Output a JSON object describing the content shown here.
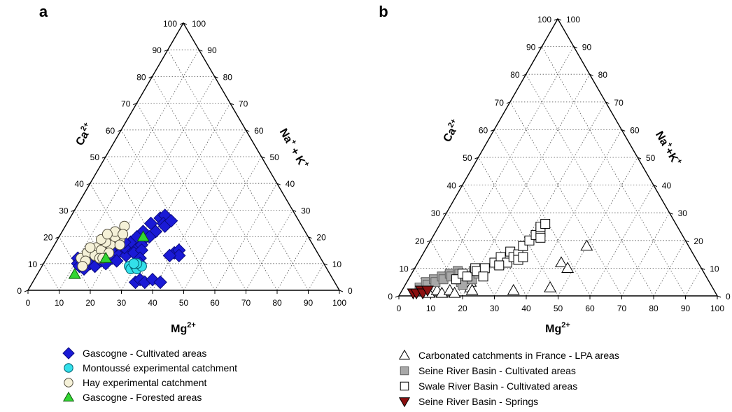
{
  "chart_data": [
    {
      "type": "scatter",
      "subtype": "ternary",
      "panel_label": "a",
      "axes": {
        "bottom": {
          "label": "Mg",
          "sup": "2+",
          "ticks": [
            "0",
            "10",
            "20",
            "30",
            "40",
            "50",
            "60",
            "70",
            "80",
            "90",
            "100"
          ]
        },
        "left": {
          "label": "Ca",
          "sup": "2+",
          "ticks": [
            "0",
            "10",
            "20",
            "30",
            "40",
            "50",
            "60",
            "70",
            "80",
            "90",
            "100"
          ]
        },
        "right": {
          "label": "Na",
          "sup1": "+",
          "mid": " + K",
          "sup2": "+",
          "ticks": [
            "0",
            "10",
            "20",
            "30",
            "40",
            "50",
            "60",
            "70",
            "80",
            "90",
            "100"
          ]
        }
      },
      "grid": true,
      "legend_position": "bottom",
      "series": [
        {
          "name": "Gascogne - Cultivated areas",
          "marker": "diamond",
          "fill": "#1a1ad6",
          "stroke": "#0a0a80",
          "points": [
            [
              10,
              12
            ],
            [
              11,
              10
            ],
            [
              12,
              9
            ],
            [
              13,
              11
            ],
            [
              14,
              8
            ],
            [
              15,
              10
            ],
            [
              16,
              12
            ],
            [
              17,
              9
            ],
            [
              18,
              11
            ],
            [
              19,
              13
            ],
            [
              20,
              10
            ],
            [
              21,
              12
            ],
            [
              22,
              14
            ],
            [
              23,
              11
            ],
            [
              24,
              15
            ],
            [
              25,
              13
            ],
            [
              26,
              16
            ],
            [
              27,
              14
            ],
            [
              27,
              18
            ],
            [
              28,
              20
            ],
            [
              26,
              22
            ],
            [
              27,
              25
            ],
            [
              29,
              27
            ],
            [
              30,
              28
            ],
            [
              31,
              25
            ],
            [
              30,
              22
            ],
            [
              32,
              24
            ],
            [
              33,
              26
            ],
            [
              29,
              20
            ],
            [
              28,
              17
            ],
            [
              29,
              15
            ],
            [
              30,
              12
            ],
            [
              31,
              10
            ],
            [
              33,
              3
            ],
            [
              34,
              4
            ],
            [
              36,
              3
            ],
            [
              38,
              4
            ],
            [
              41,
              3
            ],
            [
              40,
              14
            ],
            [
              41,
              15
            ],
            [
              42,
              13
            ],
            [
              39,
              13
            ],
            [
              24,
              18
            ],
            [
              25,
              20
            ],
            [
              23,
              16
            ],
            [
              22,
              18
            ],
            [
              20,
              17
            ],
            [
              19,
              15
            ]
          ]
        },
        {
          "name": "Montoussé experimental catchment",
          "marker": "circle",
          "fill": "#33e0ea",
          "stroke": "#006070",
          "points": [
            [
              28,
              9
            ],
            [
              29,
              8
            ],
            [
              30,
              9
            ],
            [
              31,
              8
            ],
            [
              32,
              9
            ],
            [
              30,
              10
            ],
            [
              29,
              10
            ]
          ]
        },
        {
          "name": "Hay experimental catchment",
          "marker": "circle",
          "fill": "#f5f1d8",
          "stroke": "#555040",
          "points": [
            [
              11,
              12
            ],
            [
              12,
              14
            ],
            [
              13,
              11
            ],
            [
              14,
              16
            ],
            [
              15,
              13
            ],
            [
              16,
              15
            ],
            [
              17,
              12
            ],
            [
              18,
              17
            ],
            [
              19,
              14
            ],
            [
              20,
              19
            ],
            [
              18,
              20
            ],
            [
              16,
              18
            ],
            [
              14,
              19
            ],
            [
              12,
              16
            ],
            [
              17,
              22
            ],
            [
              19,
              24
            ],
            [
              20,
              21
            ],
            [
              21,
              17
            ],
            [
              15,
              21
            ],
            [
              18,
              12
            ],
            [
              13,
              9
            ]
          ]
        },
        {
          "name": "Gascogne - Forested areas",
          "marker": "triangle-up",
          "fill": "#33d633",
          "stroke": "#0a5a0a",
          "points": [
            [
              12,
              6
            ],
            [
              19,
              12
            ],
            [
              27,
              20
            ]
          ]
        }
      ]
    },
    {
      "type": "scatter",
      "subtype": "ternary",
      "panel_label": "b",
      "axes": {
        "bottom": {
          "label": "Mg",
          "sup": "2+",
          "ticks": [
            "0",
            "10",
            "20",
            "30",
            "40",
            "50",
            "60",
            "70",
            "80",
            "90",
            "100"
          ]
        },
        "left": {
          "label": "Ca",
          "sup": "2+",
          "ticks": [
            "0",
            "10",
            "20",
            "30",
            "40",
            "50",
            "60",
            "70",
            "80",
            "90",
            "100"
          ]
        },
        "right": {
          "label": "Na",
          "sup1": "+",
          "mid": "+K",
          "sup2": "+",
          "ticks": [
            "0",
            "10",
            "20",
            "30",
            "40",
            "50",
            "60",
            "70",
            "80",
            "90",
            "100"
          ]
        }
      },
      "grid": true,
      "legend_position": "bottom",
      "series": [
        {
          "name": "Carbonated catchments in France - LPA areas",
          "marker": "triangle-up",
          "fill": "#ffffff",
          "stroke": "#000000",
          "points": [
            [
              7,
              2
            ],
            [
              9,
              1
            ],
            [
              11,
              2
            ],
            [
              13,
              1
            ],
            [
              15,
              2
            ],
            [
              17,
              1
            ],
            [
              19,
              4
            ],
            [
              20,
              5
            ],
            [
              21,
              3
            ],
            [
              22,
              2
            ],
            [
              35,
              2
            ],
            [
              45,
              12
            ],
            [
              48,
              10
            ],
            [
              50,
              18
            ],
            [
              46,
              3
            ]
          ]
        },
        {
          "name": "Seine River Basin - Cultivated areas",
          "marker": "square",
          "fill": "#a8a8a8",
          "stroke": "#606060",
          "points": [
            [
              5,
              3
            ],
            [
              6,
              5
            ],
            [
              7,
              4
            ],
            [
              8,
              6
            ],
            [
              9,
              5
            ],
            [
              10,
              7
            ],
            [
              11,
              6
            ],
            [
              12,
              8
            ],
            [
              13,
              7
            ],
            [
              14,
              9
            ],
            [
              15,
              8
            ],
            [
              16,
              6
            ],
            [
              17,
              5
            ],
            [
              18,
              4
            ],
            [
              19,
              7
            ],
            [
              20,
              6
            ],
            [
              19,
              9
            ],
            [
              21,
              8
            ]
          ]
        },
        {
          "name": "Swale River Basin - Cultivated areas",
          "marker": "square",
          "fill": "#ffffff",
          "stroke": "#000000",
          "points": [
            [
              15,
              6
            ],
            [
              16,
              8
            ],
            [
              18,
              7
            ],
            [
              19,
              10
            ],
            [
              20,
              9
            ],
            [
              22,
              10
            ],
            [
              24,
              12
            ],
            [
              25,
              14
            ],
            [
              27,
              16
            ],
            [
              28,
              12
            ],
            [
              29,
              14
            ],
            [
              30,
              15
            ],
            [
              31,
              13
            ],
            [
              32,
              14
            ],
            [
              30,
              18
            ],
            [
              31,
              20
            ],
            [
              32,
              22
            ],
            [
              33,
              23
            ],
            [
              32,
              25
            ],
            [
              33,
              26
            ],
            [
              34,
              21
            ],
            [
              26,
              11
            ],
            [
              23,
              7
            ]
          ]
        },
        {
          "name": "Seine River Basin - Springs",
          "marker": "triangle-down",
          "fill": "#8b1010",
          "stroke": "#000000",
          "points": [
            [
              4,
              1
            ],
            [
              5,
              1
            ],
            [
              6,
              2
            ],
            [
              7,
              1
            ],
            [
              8,
              2
            ]
          ]
        }
      ]
    }
  ]
}
